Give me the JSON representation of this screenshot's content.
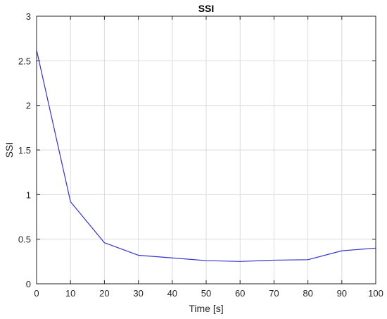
{
  "chart_data": {
    "type": "line",
    "title": "SSI",
    "xlabel": "Time [s]",
    "ylabel": "SSI",
    "xlim": [
      0,
      100
    ],
    "ylim": [
      0,
      3
    ],
    "x_ticks": [
      "0",
      "10",
      "20",
      "30",
      "40",
      "50",
      "60",
      "70",
      "80",
      "90",
      "100"
    ],
    "y_ticks": [
      "0",
      "0.5",
      "1",
      "1.5",
      "2",
      "2.5",
      "3"
    ],
    "grid": true,
    "series": [
      {
        "x": [
          0,
          10,
          20,
          30,
          40,
          50,
          60,
          70,
          80,
          90,
          100
        ],
        "y": [
          2.62,
          0.92,
          0.46,
          0.32,
          0.29,
          0.26,
          0.25,
          0.265,
          0.27,
          0.37,
          0.4
        ],
        "color": "#3333cc"
      }
    ]
  }
}
